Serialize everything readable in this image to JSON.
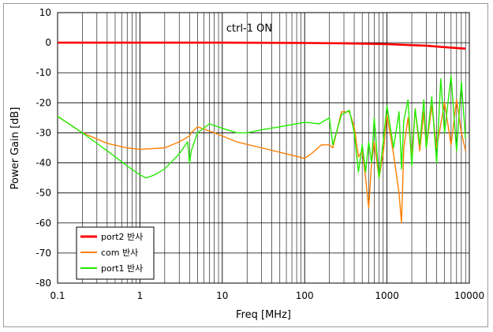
{
  "chart_data": {
    "type": "line",
    "title": "ctrl-1 ON",
    "xlabel": "Freq [MHz]",
    "ylabel": "Power Gain [dB]",
    "x_scale": "log",
    "xlim": [
      0.1,
      10000
    ],
    "ylim": [
      -80,
      10
    ],
    "x_ticks": [
      0.1,
      1,
      10,
      100,
      1000,
      10000
    ],
    "x_tick_labels": [
      "0.1",
      "1",
      "10",
      "100",
      "1000",
      "10000"
    ],
    "y_ticks": [
      10,
      0,
      -10,
      -20,
      -30,
      -40,
      -50,
      -60,
      -70,
      -80
    ],
    "y_tick_labels": [
      "10",
      "0",
      "-10",
      "-20",
      "-30",
      "-40",
      "-50",
      "-60",
      "-70",
      "-80"
    ],
    "grid": true,
    "legend_position": "bottom-left",
    "series": [
      {
        "name": "port2 반사",
        "color": "#ff0000",
        "x": [
          0.1,
          1,
          10,
          100,
          300,
          1000,
          3000,
          5000,
          9000
        ],
        "y": [
          0,
          0,
          0,
          -0.1,
          -0.2,
          -0.5,
          -1,
          -1.5,
          -2
        ]
      },
      {
        "name": "com 반사",
        "color": "#ff7f00",
        "x": [
          0.1,
          0.2,
          0.4,
          0.7,
          1,
          2,
          3,
          4,
          4.2,
          5,
          8,
          15,
          30,
          60,
          100,
          120,
          160,
          200,
          220,
          280,
          350,
          400,
          450,
          500,
          550,
          600,
          650,
          700,
          800,
          900,
          1000,
          1200,
          1400,
          1500,
          1600,
          1800,
          2000,
          2200,
          2500,
          2800,
          3000,
          3500,
          4000,
          5000,
          6000,
          7000,
          8000,
          9000
        ],
        "y": [
          -24.5,
          -30,
          -33.5,
          -35,
          -35.5,
          -35,
          -33,
          -31,
          -30,
          -28,
          -30,
          -33,
          -35,
          -37,
          -38.5,
          -37,
          -34,
          -34,
          -35,
          -23,
          -23,
          -28,
          -38,
          -36,
          -45,
          -55,
          -40,
          -33,
          -45,
          -37,
          -24,
          -37,
          -50,
          -60,
          -35,
          -25,
          -38,
          -22,
          -36,
          -23,
          -35,
          -21,
          -35,
          -20,
          -34,
          -19,
          -30,
          -36
        ]
      },
      {
        "name": "port1 반사",
        "color": "#22ee00",
        "x": [
          0.1,
          0.2,
          0.4,
          0.7,
          1,
          1.2,
          1.5,
          2,
          3,
          3.8,
          4,
          4.2,
          5,
          7,
          10,
          15,
          20,
          30,
          50,
          100,
          150,
          200,
          220,
          280,
          350,
          400,
          450,
          500,
          550,
          600,
          650,
          700,
          800,
          900,
          1000,
          1200,
          1400,
          1500,
          1600,
          1800,
          2000,
          2200,
          2500,
          2800,
          3000,
          3500,
          4000,
          4500,
          5000,
          6000,
          7000,
          8000,
          9000
        ],
        "y": [
          -24.5,
          -30,
          -36,
          -41,
          -44,
          -45,
          -44,
          -42,
          -37,
          -33,
          -40,
          -36,
          -30,
          -27,
          -28.5,
          -30,
          -30,
          -29,
          -28,
          -26.5,
          -27,
          -25,
          -34,
          -24,
          -22.5,
          -30,
          -43,
          -34,
          -43,
          -33,
          -40,
          -25,
          -45,
          -33,
          -21,
          -35,
          -23,
          -42,
          -26,
          -19,
          -41,
          -22,
          -34,
          -19,
          -35,
          -18,
          -40,
          -12,
          -30,
          -11,
          -36,
          -13,
          -32
        ]
      }
    ]
  }
}
